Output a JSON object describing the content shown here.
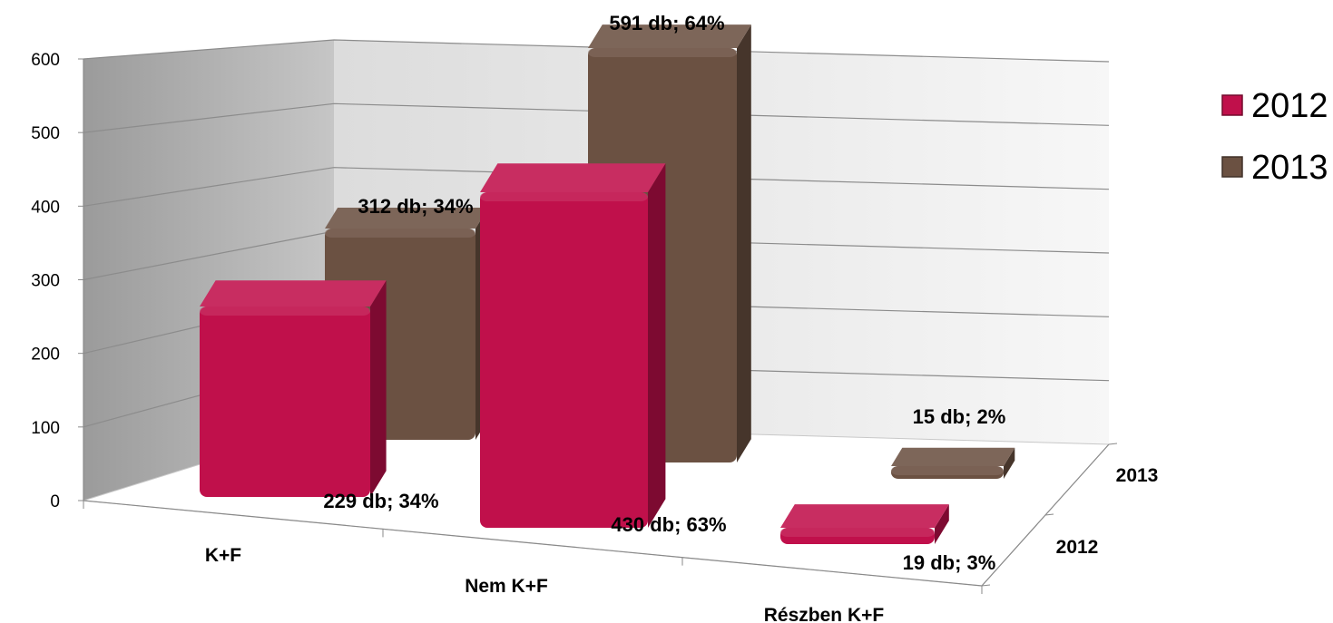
{
  "chart_data": {
    "type": "bar",
    "subtype": "3d-clustered-column",
    "categories": [
      "K+F",
      "Nem K+F",
      "Részben K+F"
    ],
    "series": [
      {
        "name": "2012",
        "values": [
          229,
          430,
          19
        ],
        "labels": [
          "229 db; 34%",
          "430 db; 63%",
          "19 db; 3%"
        ],
        "color": "#c0104b"
      },
      {
        "name": "2013",
        "values": [
          312,
          591,
          15
        ],
        "labels": [
          "312 db; 34%",
          "591 db; 64%",
          "15 db; 2%"
        ],
        "color": "#6b5142"
      }
    ],
    "depth_labels": [
      "2012",
      "2013"
    ],
    "yticks": [
      "0",
      "100",
      "200",
      "300",
      "400",
      "500",
      "600"
    ],
    "ylim": [
      0,
      600
    ],
    "legend": "right",
    "grid": true
  }
}
